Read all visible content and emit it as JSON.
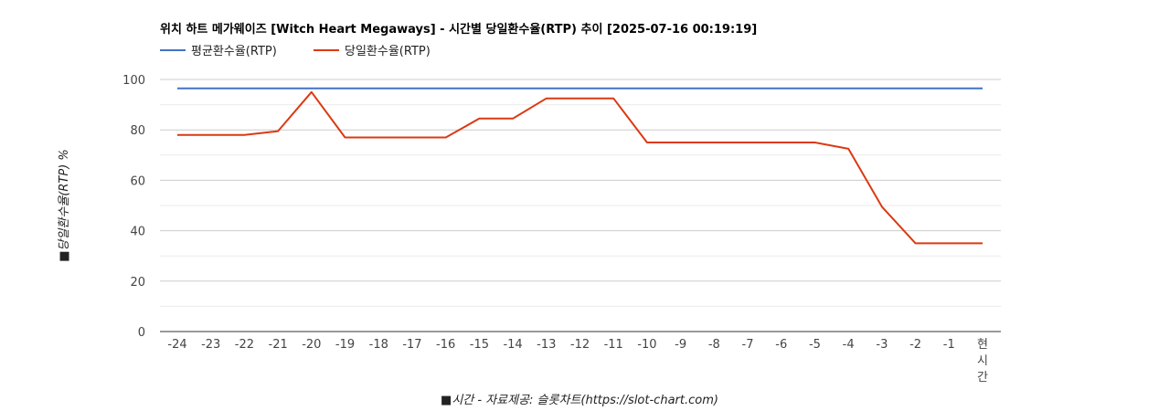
{
  "chart_data": {
    "type": "line",
    "title": "위치 하트 메가웨이즈 [Witch Heart Megaways] - 시간별 당일환수율(RTP) 추이 [2025-07-16 00:19:19]",
    "xlabel": "■시간 - 자료제공: 슬롯차트(https://slot-chart.com)",
    "ylabel": "■당일환수율(RTP) %",
    "categories": [
      "-24",
      "-23",
      "-22",
      "-21",
      "-20",
      "-19",
      "-18",
      "-17",
      "-16",
      "-15",
      "-14",
      "-13",
      "-12",
      "-11",
      "-10",
      "-9",
      "-8",
      "-7",
      "-6",
      "-5",
      "-4",
      "-3",
      "-2",
      "-1",
      "현시간"
    ],
    "ylim": [
      0,
      100
    ],
    "yticks": [
      "0",
      "20",
      "40",
      "60",
      "80",
      "100"
    ],
    "grid": true,
    "legend_position": "top-left",
    "series": [
      {
        "name": "평균환수율(RTP)",
        "color": "#4472c4",
        "values": [
          96.5,
          96.5,
          96.5,
          96.5,
          96.5,
          96.5,
          96.5,
          96.5,
          96.5,
          96.5,
          96.5,
          96.5,
          96.5,
          96.5,
          96.5,
          96.5,
          96.5,
          96.5,
          96.5,
          96.5,
          96.5,
          96.5,
          96.5,
          96.5,
          96.5
        ]
      },
      {
        "name": "당일환수율(RTP)",
        "color": "#dc3912",
        "values": [
          78,
          78,
          78,
          79.5,
          95,
          77,
          77,
          77,
          77,
          84.5,
          84.5,
          92.5,
          92.5,
          92.5,
          75,
          75,
          75,
          75,
          75,
          75,
          72.5,
          49.5,
          35,
          35,
          35
        ]
      }
    ]
  }
}
